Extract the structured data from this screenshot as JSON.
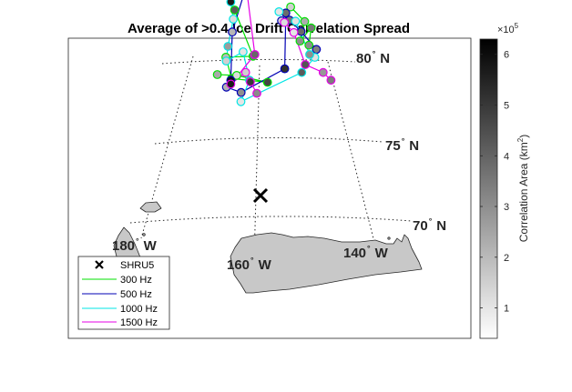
{
  "chart_data": {
    "type": "scatter",
    "title": "Average of >0.4 Ice Drift Correlation Spread",
    "map_labels": {
      "lat_80": {
        "num": "80",
        "deg": "°",
        "dir": "N"
      },
      "lat_75": {
        "num": "75",
        "deg": "°",
        "dir": "N"
      },
      "lat_70": {
        "num": "70",
        "deg": "°",
        "dir": "N"
      },
      "lon_180": {
        "num": "180",
        "deg": "°",
        "dir": "W"
      },
      "lon_160": {
        "num": "160",
        "deg": "°",
        "dir": "W"
      },
      "lon_140": {
        "num": "140",
        "deg": "°",
        "dir": "W"
      }
    },
    "marker": {
      "name": "SHRU5",
      "symbol": "x",
      "color": "#000000"
    },
    "legend": {
      "location": "lower-left",
      "entries": [
        "SHRU5",
        "300 Hz",
        "500 Hz",
        "1000 Hz",
        "1500 Hz"
      ]
    },
    "colorbar": {
      "label_prefix": "Correlation Area (km",
      "label_sup": "2",
      "label_suffix": ")",
      "multiplier_base": "×10",
      "multiplier_exp": "5",
      "ticks": [
        1,
        2,
        3,
        4,
        5,
        6
      ],
      "tick_labels": [
        "1",
        "2",
        "3",
        "4",
        "5",
        "6"
      ],
      "range": [
        0.4,
        6.3
      ],
      "colormap": "gray-reversed (white = low, black = high)"
    },
    "series": [
      {
        "name": "300 Hz",
        "color": "#00e000",
        "tracks": [
          [
            {
              "lon": -168.8,
              "lat": 78.6,
              "v": 4.2
            },
            {
              "lon": -163.2,
              "lat": 76.2,
              "v": 3.6
            },
            {
              "lon": -169.2,
              "lat": 76.0,
              "v": 2.0
            },
            {
              "lon": -167.4,
              "lat": 74.9,
              "v": 4.5
            },
            {
              "lon": -160.0,
              "lat": 74.8,
              "v": 4.7
            },
            {
              "lon": -166.4,
              "lat": 75.1,
              "v": 1.2
            },
            {
              "lon": -170.4,
              "lat": 75.0,
              "v": 2.4
            }
          ],
          [
            {
              "lon": -153.4,
              "lat": 78.8,
              "v": 1.5
            },
            {
              "lon": -150.3,
              "lat": 77.9,
              "v": 2.3
            },
            {
              "lon": -152.2,
              "lat": 76.9,
              "v": 3.0
            },
            {
              "lon": -149.0,
              "lat": 77.5,
              "v": 3.5
            },
            {
              "lon": -150.3,
              "lat": 76.6,
              "v": 3.0
            }
          ]
        ]
      },
      {
        "name": "500 Hz",
        "color": "#0000b4",
        "tracks": [
          [
            {
              "lon": -166.6,
              "lat": 79.7,
              "v": 6.2
            },
            {
              "lon": -168.6,
              "lat": 77.4,
              "v": 2.1
            },
            {
              "lon": -167.5,
              "lat": 74.8,
              "v": 5.9
            },
            {
              "lon": -168.2,
              "lat": 74.4,
              "v": 2.2
            },
            {
              "lon": -165.2,
              "lat": 74.2,
              "v": 3.0
            },
            {
              "lon": -156.3,
              "lat": 75.5,
              "v": 5.2
            },
            {
              "lon": -154.9,
              "lat": 78.5,
              "v": 3.8
            }
          ],
          [
            {
              "lon": -156.2,
              "lat": 78.1,
              "v": 1.4
            },
            {
              "lon": -154.1,
              "lat": 78.1,
              "v": 3.6
            },
            {
              "lon": -151.6,
              "lat": 77.4,
              "v": 3.9
            },
            {
              "lon": -148.8,
              "lat": 76.3,
              "v": 3.3
            }
          ]
        ]
      },
      {
        "name": "1000 Hz",
        "color": "#00e6e6",
        "tracks": [
          [
            {
              "lon": -170.2,
              "lat": 79.0,
              "v": 5.7
            },
            {
              "lon": -168.8,
              "lat": 78.1,
              "v": 1.2
            },
            {
              "lon": -169.1,
              "lat": 76.6,
              "v": 2.7
            },
            {
              "lon": -169.0,
              "lat": 75.8,
              "v": 1.5
            },
            {
              "lon": -165.5,
              "lat": 76.4,
              "v": 1.0
            },
            {
              "lon": -163.7,
              "lat": 74.9,
              "v": 3.0
            },
            {
              "lon": -165.1,
              "lat": 73.7,
              "v": 1.0
            },
            {
              "lon": -152.8,
              "lat": 75.2,
              "v": 4.2
            },
            {
              "lon": -149.5,
              "lat": 75.9,
              "v": 1.1
            }
          ],
          [
            {
              "lon": -156.7,
              "lat": 78.6,
              "v": 1.0
            },
            {
              "lon": -152.6,
              "lat": 78.0,
              "v": 1.1
            },
            {
              "lon": -150.5,
              "lat": 76.1,
              "v": 3.0
            }
          ]
        ]
      },
      {
        "name": "1500 Hz",
        "color": "#e600e6",
        "tracks": [
          [
            {
              "lon": -166.0,
              "lat": 79.7,
              "v": 5.5
            },
            {
              "lon": -162.8,
              "lat": 76.3,
              "v": 3.9
            },
            {
              "lon": -167.4,
              "lat": 74.6,
              "v": 5.7
            },
            {
              "lon": -164.6,
              "lat": 75.3,
              "v": 1.5
            },
            {
              "lon": -163.5,
              "lat": 74.8,
              "v": 5.0
            },
            {
              "lon": -162.1,
              "lat": 74.2,
              "v": 3.1
            }
          ],
          [
            {
              "lon": -155.5,
              "lat": 78.0,
              "v": 1.2
            },
            {
              "lon": -153.4,
              "lat": 77.4,
              "v": 1.0
            },
            {
              "lon": -151.8,
              "lat": 75.6,
              "v": 4.3
            },
            {
              "lon": -148.4,
              "lat": 75.0,
              "v": 2.8
            },
            {
              "lon": -147.2,
              "lat": 74.5,
              "v": 3.4
            }
          ]
        ]
      }
    ],
    "axes": {
      "xlim": [
        -183,
        -135
      ],
      "ylim": [
        69.5,
        82
      ],
      "grid": "graticule",
      "projection": "polar map"
    }
  }
}
